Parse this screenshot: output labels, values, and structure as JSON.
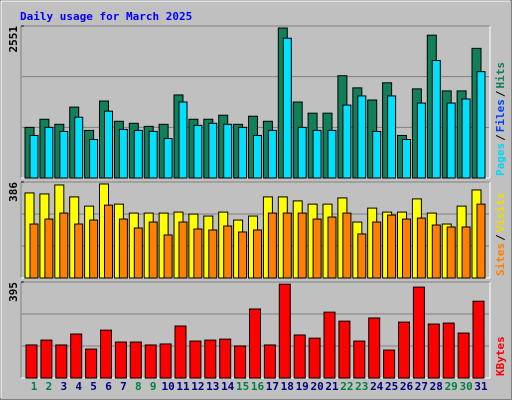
{
  "chart_data": {
    "type": "bar",
    "title": "Daily usage for March 2025",
    "categories": [
      "1",
      "2",
      "3",
      "4",
      "5",
      "6",
      "7",
      "8",
      "9",
      "10",
      "11",
      "12",
      "13",
      "14",
      "15",
      "16",
      "17",
      "18",
      "19",
      "20",
      "21",
      "22",
      "23",
      "24",
      "25",
      "26",
      "27",
      "28",
      "29",
      "30",
      "31"
    ],
    "category_colors": [
      "#008040",
      "#008040",
      "#000080",
      "#000080",
      "#000080",
      "#000080",
      "#000080",
      "#008040",
      "#008040",
      "#000080",
      "#000080",
      "#000080",
      "#000080",
      "#000080",
      "#008040",
      "#008040",
      "#000080",
      "#000080",
      "#000080",
      "#000080",
      "#000080",
      "#008040",
      "#008040",
      "#000080",
      "#000080",
      "#000080",
      "#000080",
      "#000080",
      "#008040",
      "#008040",
      "#000080"
    ],
    "legend_separator": "/",
    "panels": [
      {
        "ylim": [
          0,
          2551
        ],
        "yticks": [
          2551
        ],
        "legend": [
          {
            "name": "Pages",
            "color": "#00d8f0"
          },
          {
            "name": "Files",
            "color": "#0040ff"
          },
          {
            "name": "Hits",
            "color": "#117f5a"
          }
        ],
        "series": [
          {
            "color": "#117f5a",
            "values": [
              850,
              986,
              901,
              1190,
              799,
              1292,
              952,
              918,
              867,
              901,
              1394,
              986,
              986,
              1054,
              901,
              1037,
              952,
              2517,
              1275,
              1088,
              1088,
              1717,
              1513,
              1309,
              1598,
              714,
              1496,
              2397,
              1462,
              1462,
              2176
            ]
          },
          {
            "color": "#00e0ff",
            "values": [
              714,
              850,
              782,
              1020,
              646,
              1122,
              816,
              799,
              782,
              663,
              1275,
              884,
              918,
              901,
              850,
              714,
              799,
              2346,
              850,
              799,
              799,
              1224,
              1377,
              782,
              1377,
              646,
              1258,
              1972,
              1258,
              1326,
              1785
            ]
          }
        ]
      },
      {
        "ylim": [
          0,
          386
        ],
        "yticks": [
          386
        ],
        "legend": [
          {
            "name": "Sites",
            "color": "#ff8000"
          },
          {
            "name": "Visits",
            "color": "#e8e000"
          }
        ],
        "series": [
          {
            "color": "#ffff00",
            "values": [
              342,
              338,
              374,
              326,
              289,
              378,
              297,
              261,
              261,
              261,
              265,
              257,
              249,
              265,
              233,
              249,
              326,
              326,
              310,
              297,
              297,
              322,
              225,
              281,
              265,
              265,
              318,
              261,
              217,
              289,
              354
            ]
          },
          {
            "color": "#ff8000",
            "values": [
              217,
              237,
              261,
              217,
              233,
              293,
              237,
              201,
              225,
              173,
              225,
              197,
              193,
              209,
              185,
              193,
              261,
              261,
              261,
              237,
              245,
              261,
              177,
              225,
              253,
              237,
              241,
              213,
              205,
              205,
              297
            ]
          }
        ]
      },
      {
        "ylim": [
          0,
          395
        ],
        "yticks": [
          395
        ],
        "legend": [
          {
            "name": "KBytes",
            "color": "#ff0000"
          }
        ],
        "series": [
          {
            "color": "#ff0000",
            "values": [
              136,
              156,
              136,
              181,
              119,
              197,
              148,
              148,
              136,
              140,
              214,
              152,
              156,
              160,
              132,
              284,
              136,
              386,
              177,
              164,
              271,
              234,
              152,
              247,
              115,
              230,
              374,
              222,
              226,
              185,
              316
            ]
          }
        ]
      }
    ]
  }
}
